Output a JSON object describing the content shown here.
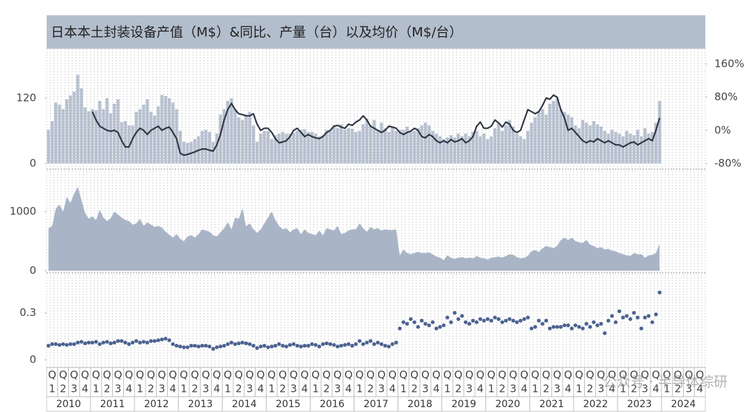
{
  "x_axis": {
    "years": [
      "2010",
      "2011",
      "2012",
      "2013",
      "2014",
      "2015",
      "2016",
      "2017",
      "2018",
      "2019",
      "2020",
      "2021",
      "2022",
      "2023",
      "2024"
    ],
    "quarter_prefix": "Q",
    "quarter_numbers": [
      "1",
      "2",
      "3",
      "4"
    ]
  },
  "watermark": "公众号 · 半导体综研",
  "chart_data": [
    {
      "type": "bar",
      "title": "日本本土封装设备产值（M$）&同比、产量（台）以及均价（M$/台）",
      "ylim": [
        0,
        198
      ],
      "yticks": [
        0,
        120
      ],
      "y2lim": [
        -80,
        180
      ],
      "y2ticks": [
        {
          "value": -80,
          "label": "-80%"
        },
        {
          "value": 0,
          "label": "0%"
        },
        {
          "value": 80,
          "label": "80%"
        },
        {
          "value": 160,
          "label": "160%"
        }
      ],
      "series": [
        {
          "type": "bar",
          "color": "#b7c1d1",
          "values": [
            62,
            78,
            112,
            108,
            100,
            118,
            125,
            132,
            163,
            138,
            103,
            96,
            100,
            98,
            115,
            100,
            120,
            92,
            110,
            118,
            76,
            78,
            70,
            70,
            95,
            100,
            108,
            118,
            95,
            88,
            105,
            126,
            124,
            120,
            112,
            100,
            60,
            40,
            38,
            40,
            45,
            50,
            60,
            62,
            58,
            40,
            55,
            90,
            100,
            115,
            120,
            100,
            85,
            80,
            90,
            95,
            70,
            40,
            55,
            60,
            60,
            45,
            52,
            55,
            58,
            55,
            55,
            56,
            60,
            62,
            63,
            58,
            58,
            55,
            50,
            52,
            62,
            60,
            70,
            65,
            72,
            62,
            65,
            64,
            58,
            60,
            72,
            82,
            70,
            80,
            60,
            75,
            65,
            58,
            68,
            60,
            62,
            62,
            68,
            58,
            60,
            65,
            70,
            75,
            70,
            60,
            55,
            50,
            45,
            48,
            52,
            48,
            55,
            50,
            55,
            50,
            58,
            60,
            50,
            55,
            45,
            50,
            65,
            75,
            60,
            70,
            80,
            68,
            55,
            50,
            45,
            60,
            75,
            85,
            95,
            100,
            90,
            110,
            115,
            120,
            100,
            95,
            90,
            85,
            70,
            65,
            80,
            75,
            70,
            78,
            72,
            68,
            60,
            55,
            62,
            58,
            55,
            50,
            60,
            55,
            52,
            62,
            50,
            65,
            55,
            58,
            75,
            115
          ]
        },
        {
          "type": "line",
          "color": "#2f3642",
          "axis": "y2",
          "values": [
            null,
            null,
            null,
            null,
            null,
            null,
            null,
            null,
            null,
            null,
            null,
            null,
            45,
            25,
            10,
            5,
            0,
            -2,
            0,
            -5,
            -25,
            -40,
            -40,
            -20,
            -5,
            5,
            0,
            -10,
            0,
            5,
            10,
            0,
            5,
            8,
            -5,
            -20,
            -55,
            -60,
            -58,
            -55,
            -52,
            -48,
            -45,
            -45,
            -48,
            -50,
            -35,
            -10,
            25,
            50,
            65,
            50,
            40,
            38,
            35,
            35,
            40,
            15,
            0,
            5,
            5,
            -5,
            -20,
            -30,
            -28,
            -25,
            -15,
            0,
            5,
            -5,
            -15,
            -10,
            -15,
            -18,
            -20,
            -15,
            -5,
            0,
            10,
            12,
            8,
            5,
            15,
            12,
            20,
            25,
            35,
            25,
            10,
            5,
            0,
            -5,
            0,
            10,
            8,
            5,
            -5,
            -10,
            -5,
            -2,
            5,
            0,
            -15,
            -18,
            -10,
            -15,
            -25,
            -30,
            -25,
            -30,
            -22,
            -28,
            -25,
            -20,
            -30,
            -25,
            -15,
            10,
            20,
            5,
            5,
            10,
            25,
            18,
            8,
            20,
            15,
            0,
            -5,
            0,
            25,
            50,
            45,
            40,
            45,
            60,
            78,
            75,
            85,
            80,
            50,
            30,
            0,
            5,
            -5,
            -15,
            -25,
            -30,
            -25,
            -28,
            -20,
            -25,
            -30,
            -25,
            -30,
            -35,
            -35,
            -40,
            -35,
            -30,
            -28,
            -35,
            -30,
            -25,
            -20,
            -25,
            0,
            30
          ]
        }
      ]
    },
    {
      "type": "area",
      "color": "#a9b5c7",
      "ylim": [
        0,
        1660
      ],
      "yticks": [
        0,
        1000
      ],
      "values": [
        720,
        760,
        1050,
        1120,
        1000,
        1250,
        1150,
        1300,
        1420,
        1200,
        980,
        880,
        920,
        860,
        1030,
        900,
        840,
        890,
        1000,
        950,
        900,
        860,
        840,
        780,
        800,
        880,
        760,
        820,
        780,
        740,
        760,
        730,
        660,
        610,
        560,
        620,
        540,
        500,
        580,
        600,
        560,
        620,
        700,
        680,
        660,
        600,
        580,
        650,
        720,
        820,
        700,
        900,
        880,
        1060,
        750,
        800,
        700,
        640,
        700,
        800,
        900,
        1000,
        860,
        760,
        700,
        720,
        650,
        700,
        720,
        620,
        700,
        640,
        620,
        600,
        680,
        600,
        720,
        700,
        680,
        760,
        620,
        640,
        680,
        700,
        700,
        800,
        720,
        660,
        740,
        700,
        720,
        680,
        700,
        690,
        690,
        700,
        260,
        360,
        300,
        280,
        300,
        320,
        300,
        300,
        310,
        280,
        240,
        220,
        180,
        260,
        220,
        200,
        220,
        230,
        210,
        220,
        210,
        250,
        220,
        210,
        190,
        220,
        230,
        240,
        220,
        250,
        280,
        270,
        230,
        210,
        220,
        250,
        330,
        350,
        320,
        380,
        420,
        400,
        380,
        420,
        520,
        560,
        520,
        560,
        500,
        480,
        470,
        520,
        440,
        420,
        380,
        400,
        360,
        370,
        340,
        330,
        300,
        280,
        260,
        250,
        300,
        280,
        280,
        220,
        260,
        270,
        300,
        460
      ]
    },
    {
      "type": "scatter",
      "color": "#4b6291",
      "ylim": [
        0,
        0.52
      ],
      "yticks": [
        0,
        0.3
      ],
      "values": [
        0.09,
        0.1,
        0.1,
        0.095,
        0.1,
        0.095,
        0.1,
        0.1,
        0.11,
        0.115,
        0.105,
        0.11,
        0.11,
        0.115,
        0.1,
        0.11,
        0.115,
        0.105,
        0.11,
        0.12,
        0.12,
        0.11,
        0.1,
        0.11,
        0.12,
        0.11,
        0.115,
        0.11,
        0.12,
        0.12,
        0.125,
        0.13,
        0.135,
        0.125,
        0.1,
        0.09,
        0.085,
        0.08,
        0.08,
        0.09,
        0.09,
        0.085,
        0.09,
        0.09,
        0.085,
        0.07,
        0.08,
        0.085,
        0.09,
        0.1,
        0.11,
        0.1,
        0.105,
        0.11,
        0.105,
        0.1,
        0.09,
        0.075,
        0.085,
        0.09,
        0.08,
        0.085,
        0.09,
        0.1,
        0.09,
        0.085,
        0.095,
        0.1,
        0.09,
        0.085,
        0.09,
        0.09,
        0.1,
        0.095,
        0.085,
        0.1,
        0.105,
        0.1,
        0.095,
        0.085,
        0.09,
        0.095,
        0.1,
        0.09,
        0.1,
        0.12,
        0.1,
        0.11,
        0.12,
        0.1,
        0.11,
        0.1,
        0.09,
        0.085,
        0.1,
        0.11,
        0.2,
        0.24,
        0.23,
        0.26,
        0.24,
        0.21,
        0.25,
        0.23,
        0.22,
        0.24,
        0.2,
        0.21,
        0.22,
        0.27,
        0.24,
        0.3,
        0.26,
        0.28,
        0.24,
        0.23,
        0.25,
        0.24,
        0.26,
        0.25,
        0.26,
        0.25,
        0.27,
        0.26,
        0.24,
        0.25,
        0.26,
        0.25,
        0.24,
        0.25,
        0.26,
        0.27,
        0.2,
        0.21,
        0.25,
        0.23,
        0.25,
        0.2,
        0.21,
        0.21,
        0.21,
        0.22,
        0.22,
        0.2,
        0.22,
        0.21,
        0.2,
        0.23,
        0.21,
        0.24,
        0.22,
        0.23,
        0.17,
        0.25,
        0.28,
        0.24,
        0.31,
        0.27,
        0.28,
        0.26,
        0.3,
        0.27,
        0.2,
        0.27,
        0.28,
        0.24,
        0.29,
        0.43
      ]
    }
  ]
}
